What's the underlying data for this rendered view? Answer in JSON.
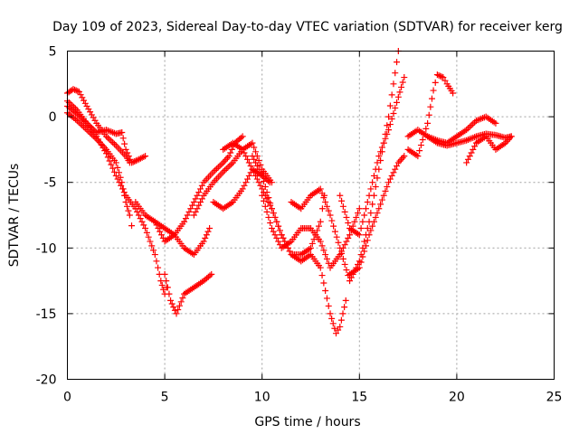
{
  "chart_data": {
    "type": "scatter",
    "title": "Day 109 of 2023, Sidereal Day-to-day VTEC variation (SDTVAR) for receiver kerg",
    "xlabel": "GPS time / hours",
    "ylabel": "SDTVAR / TECUs",
    "xlim": [
      0,
      25
    ],
    "ylim": [
      -20,
      5
    ],
    "xticks": [
      0,
      5,
      10,
      15,
      20,
      25
    ],
    "yticks": [
      5,
      0,
      -5,
      -10,
      -15,
      -20
    ],
    "xtick_labels": [
      "0",
      "5",
      "10",
      "15",
      "20",
      "25"
    ],
    "ytick_labels": [
      "5",
      "0",
      "-5",
      "-10",
      "-15",
      "-20"
    ],
    "grid": true,
    "marker": "+",
    "color": "#ff0000",
    "series": [
      {
        "x": [
          0.0,
          0.3,
          0.6,
          1.0,
          1.5,
          2.0,
          2.5,
          3.0,
          3.2
        ],
        "y": [
          1.8,
          2.1,
          1.9,
          0.8,
          -0.5,
          -1.5,
          -2.2,
          -3.0,
          -3.5
        ]
      },
      {
        "x": [
          0.0,
          0.5,
          1.0,
          1.5,
          2.0,
          2.5,
          2.8,
          3.0,
          3.3,
          3.6,
          4.0
        ],
        "y": [
          1.2,
          0.5,
          -0.5,
          -1.2,
          -1.0,
          -1.3,
          -1.2,
          -2.5,
          -3.5,
          -3.3,
          -3.0
        ]
      },
      {
        "x": [
          0.0,
          0.5,
          1.0,
          1.5,
          2.0,
          2.5,
          3.0,
          3.5,
          4.0,
          4.5,
          4.8,
          5.0,
          5.1
        ],
        "y": [
          0.8,
          0.2,
          -0.5,
          -1.5,
          -2.8,
          -4.5,
          -6.0,
          -7.0,
          -8.5,
          -10.5,
          -12.5,
          -13.5,
          -13.0
        ]
      },
      {
        "x": [
          0.0,
          0.5,
          1.0,
          1.5,
          2.0,
          2.5,
          2.8,
          3.0,
          3.2,
          3.3
        ],
        "y": [
          0.3,
          -0.3,
          -1.0,
          -1.7,
          -2.5,
          -3.5,
          -5.0,
          -6.5,
          -7.5,
          -8.3
        ]
      },
      {
        "x": [
          3.5,
          4.0,
          4.5,
          5.0,
          5.5,
          6.0,
          6.5,
          7.0,
          7.3
        ],
        "y": [
          -6.5,
          -7.5,
          -8.0,
          -9.5,
          -9.0,
          -10.0,
          -10.5,
          -9.5,
          -8.5
        ]
      },
      {
        "x": [
          5.0,
          5.3,
          5.6,
          6.0,
          6.5,
          7.0,
          7.4
        ],
        "y": [
          -12.0,
          -14.0,
          -15.0,
          -13.5,
          -13.0,
          -12.5,
          -12.0
        ]
      },
      {
        "x": [
          4.5,
          5.0,
          5.5,
          6.0,
          6.5,
          7.0,
          7.5,
          8.0,
          8.3,
          8.6,
          9.0
        ],
        "y": [
          -8.0,
          -8.5,
          -9.0,
          -8.0,
          -6.5,
          -5.0,
          -4.2,
          -3.5,
          -3.0,
          -2.0,
          -1.5
        ]
      },
      {
        "x": [
          6.5,
          7.0,
          7.5,
          8.0,
          8.5,
          9.0,
          9.5,
          10.0,
          10.5
        ],
        "y": [
          -7.5,
          -6.0,
          -5.0,
          -4.2,
          -3.5,
          -2.5,
          -2.0,
          -4.0,
          -5.0
        ]
      },
      {
        "x": [
          7.5,
          8.0,
          8.5,
          9.0,
          9.5,
          10.0,
          10.4
        ],
        "y": [
          -6.5,
          -7.0,
          -6.5,
          -5.5,
          -4.0,
          -4.5,
          -5.0
        ]
      },
      {
        "x": [
          8.0,
          8.5,
          9.0,
          9.5,
          10.0,
          10.5,
          11.0,
          11.5,
          12.0,
          12.5,
          13.0,
          13.2
        ],
        "y": [
          -2.5,
          -2.0,
          -2.5,
          -4.0,
          -5.5,
          -7.0,
          -9.0,
          -10.5,
          -10.5,
          -10.0,
          -8.0,
          -6.0
        ]
      },
      {
        "x": [
          9.5,
          10.0,
          10.5,
          11.0,
          11.5,
          12.0,
          12.5,
          13.0,
          13.5,
          13.8,
          14.0,
          14.3
        ],
        "y": [
          -3.0,
          -4.5,
          -7.0,
          -9.0,
          -10.5,
          -11.0,
          -10.5,
          -11.5,
          -15.0,
          -16.5,
          -16.0,
          -14.0
        ]
      },
      {
        "x": [
          10.0,
          10.5,
          11.0,
          11.5,
          12.0,
          12.5,
          13.0,
          13.5,
          14.0,
          14.5,
          15.0
        ],
        "y": [
          -6.0,
          -8.5,
          -10.0,
          -9.5,
          -8.5,
          -8.5,
          -9.5,
          -11.5,
          -10.5,
          -9.0,
          -7.0
        ]
      },
      {
        "x": [
          11.5,
          12.0,
          12.5,
          13.0,
          13.5,
          14.0,
          14.5,
          15.0,
          15.5,
          16.0,
          16.5,
          17.0
        ],
        "y": [
          -6.5,
          -7.0,
          -6.0,
          -5.5,
          -7.5,
          -10.0,
          -12.5,
          -11.0,
          -8.0,
          -4.0,
          0.0,
          5.0
        ]
      },
      {
        "x": [
          14.0,
          14.5,
          15.0,
          15.5,
          16.0,
          16.5,
          17.0,
          17.3
        ],
        "y": [
          -6.0,
          -8.5,
          -9.0,
          -6.0,
          -3.0,
          -1.0,
          1.5,
          3.0
        ]
      },
      {
        "x": [
          14.5,
          15.0,
          15.5,
          16.0,
          16.5,
          17.0,
          17.3
        ],
        "y": [
          -12.0,
          -11.5,
          -9.0,
          -7.0,
          -5.0,
          -3.5,
          -3.0
        ]
      },
      {
        "x": [
          17.5,
          18.0,
          18.5,
          19.0,
          19.5,
          20.0,
          20.5,
          21.0,
          21.5,
          22.0,
          22.5,
          22.8
        ],
        "y": [
          -1.5,
          -1.0,
          -1.5,
          -2.0,
          -2.2,
          -2.0,
          -1.8,
          -1.5,
          -1.3,
          -1.4,
          -1.6,
          -1.5
        ]
      },
      {
        "x": [
          17.5,
          18.0,
          18.5,
          18.8,
          19.0,
          19.3,
          19.5,
          19.8
        ],
        "y": [
          -2.5,
          -3.0,
          -0.5,
          2.0,
          3.2,
          3.0,
          2.5,
          1.8
        ]
      },
      {
        "x": [
          18.5,
          19.0,
          19.5,
          20.0,
          20.5,
          21.0,
          21.5,
          22.0
        ],
        "y": [
          -1.5,
          -1.8,
          -2.0,
          -1.5,
          -1.0,
          -0.3,
          0.0,
          -0.5
        ]
      },
      {
        "x": [
          20.5,
          21.0,
          21.5,
          22.0,
          22.5,
          22.8
        ],
        "y": [
          -3.5,
          -2.0,
          -1.5,
          -2.5,
          -2.0,
          -1.5
        ]
      }
    ]
  }
}
